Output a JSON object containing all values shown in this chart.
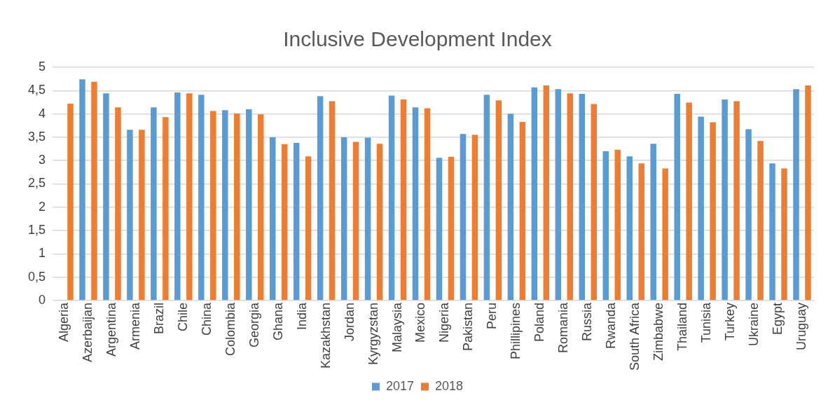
{
  "chart_data": {
    "type": "bar",
    "title": "Inclusive Development Index",
    "categories": [
      "Algeria",
      "Azerbaijan",
      "Argentina",
      "Armenia",
      "Brazil",
      "Chile",
      "China",
      "Colombia",
      "Georgia",
      "Ghana",
      "India",
      "Kazakhstan",
      "Jordan",
      "Kyrgyzstan",
      "Malaysia",
      "Mexico",
      "Nigeria",
      "Pakistan",
      "Peru",
      "Phillipines",
      "Poland",
      "Romania",
      "Russia",
      "Rwanda",
      "South Africa",
      "Zimbabwe",
      "Thailand",
      "Tunisia",
      "Turkey",
      "Ukraine",
      "Egypt",
      "Uruguay"
    ],
    "series": [
      {
        "name": "2017",
        "color": "#5b9bd5",
        "values": [
          null,
          4.74,
          4.44,
          3.66,
          4.14,
          4.46,
          4.41,
          4.08,
          4.1,
          3.5,
          3.38,
          4.38,
          3.5,
          3.49,
          4.39,
          4.14,
          3.06,
          3.57,
          4.41,
          4.0,
          4.57,
          4.53,
          4.43,
          3.2,
          3.09,
          3.36,
          4.43,
          3.94,
          4.31,
          3.67,
          2.94,
          4.53
        ]
      },
      {
        "name": "2018",
        "color": "#ed7d31",
        "values": [
          4.22,
          4.69,
          4.14,
          3.66,
          3.93,
          4.44,
          4.06,
          4.01,
          3.99,
          3.35,
          3.09,
          4.27,
          3.4,
          3.36,
          4.31,
          4.12,
          3.08,
          3.55,
          4.29,
          3.83,
          4.61,
          4.44,
          4.21,
          3.23,
          2.94,
          2.83,
          4.24,
          3.82,
          4.27,
          3.42,
          2.83,
          4.61
        ]
      }
    ],
    "ylim": [
      0,
      5
    ],
    "yticks": [
      0,
      {
        "value": 0.5,
        "label": "0,5"
      },
      1,
      {
        "value": 1.5,
        "label": "1,5"
      },
      2,
      {
        "value": 2.5,
        "label": "2,5"
      },
      3,
      {
        "value": 3.5,
        "label": "3,5"
      },
      4,
      {
        "value": 4.5,
        "label": "4,5"
      },
      5
    ],
    "grid": "y",
    "legend": "bottom"
  }
}
